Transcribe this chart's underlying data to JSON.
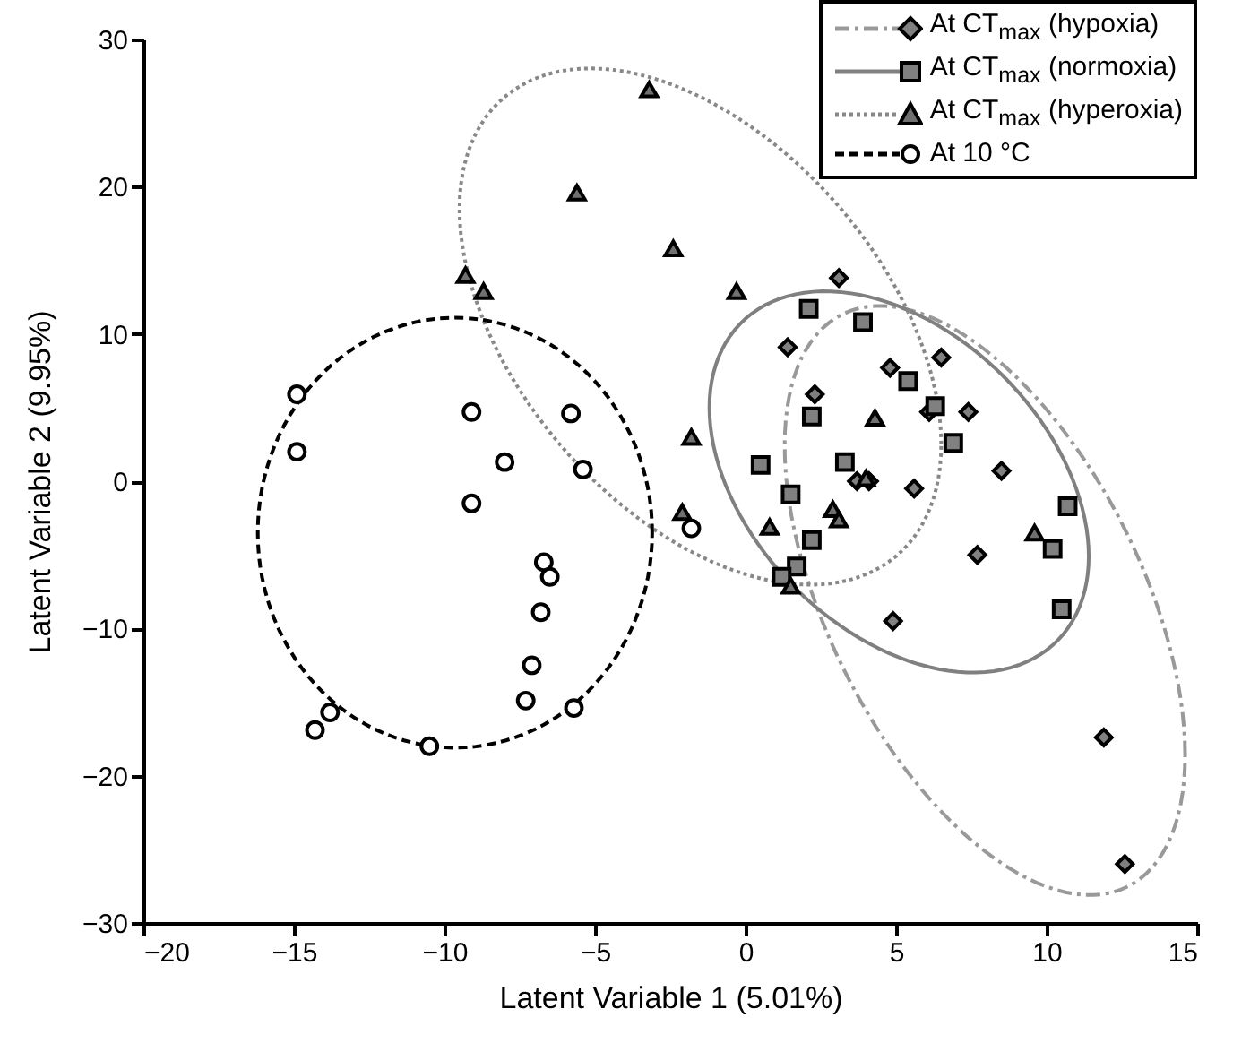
{
  "chart_data": {
    "type": "scatter",
    "xlabel": "Latent Variable 1 (5.01%)",
    "ylabel": "Latent Variable 2 (9.95%)",
    "xlim": [
      -20,
      15
    ],
    "xticks": [
      -20,
      -15,
      -10,
      -5,
      0,
      5,
      10,
      15
    ],
    "ylim": [
      -30,
      30
    ],
    "yticks": [
      -30,
      -20,
      -10,
      0,
      10,
      20,
      30
    ],
    "grid": false,
    "legend": "top right",
    "series": [
      {
        "name": "At CT$_{max}$ (hypoxia)",
        "color": "#808080",
        "marker": "diamond",
        "x": [
          3.1,
          1.4,
          4.8,
          6.5,
          2.3,
          6.1,
          7.4,
          3.7,
          4.1,
          5.6,
          8.5,
          7.7,
          4.9,
          11.9,
          12.6
        ],
        "values": [
          13.8,
          9.1,
          7.7,
          8.4,
          5.9,
          4.7,
          4.7,
          0.0,
          0.0,
          -0.5,
          0.7,
          -5.0,
          -9.5,
          -17.4,
          -26.0
        ]
      },
      {
        "name": "At CT$_{max}$ (normoxia)",
        "color": "#808080",
        "marker": "square",
        "x": [
          2.1,
          3.9,
          5.4,
          6.3,
          2.2,
          6.9,
          0.5,
          3.3,
          1.5,
          2.2,
          1.7,
          1.2,
          10.7,
          10.2,
          10.5
        ],
        "values": [
          11.7,
          10.8,
          6.8,
          5.1,
          4.4,
          2.6,
          1.1,
          1.3,
          -0.9,
          -4.0,
          -5.8,
          -6.5,
          -1.7,
          -4.6,
          -8.7
        ]
      },
      {
        "name": "At CT$_{max}$ (hyperoxia)",
        "color": "#707070",
        "marker": "triangle",
        "x": [
          -9.3,
          -8.7,
          -3.2,
          -5.6,
          -2.4,
          -0.3,
          -1.8,
          4.3,
          4.0,
          0.8,
          2.9,
          3.1,
          9.6,
          1.5,
          -2.1
        ],
        "values": [
          14.0,
          12.9,
          26.6,
          19.6,
          15.8,
          12.9,
          3.0,
          4.3,
          0.2,
          -3.1,
          -1.9,
          -2.6,
          -3.5,
          -7.1,
          -2.1
        ]
      },
      {
        "name": "At 10 °C",
        "color": "#ffffff",
        "marker": "circle",
        "x": [
          -14.9,
          -14.9,
          -9.1,
          -8.0,
          -9.1,
          -5.8,
          -5.4,
          -6.7,
          -6.5,
          -6.8,
          -7.1,
          -7.3,
          -5.7,
          -10.5,
          -13.8,
          -14.3,
          -1.8
        ],
        "values": [
          5.9,
          2.0,
          4.7,
          1.3,
          -1.5,
          4.6,
          0.8,
          -5.5,
          -6.5,
          -8.9,
          -12.5,
          -14.9,
          -15.4,
          -18.0,
          -15.7,
          -16.9,
          -3.2
        ]
      }
    ]
  }
}
